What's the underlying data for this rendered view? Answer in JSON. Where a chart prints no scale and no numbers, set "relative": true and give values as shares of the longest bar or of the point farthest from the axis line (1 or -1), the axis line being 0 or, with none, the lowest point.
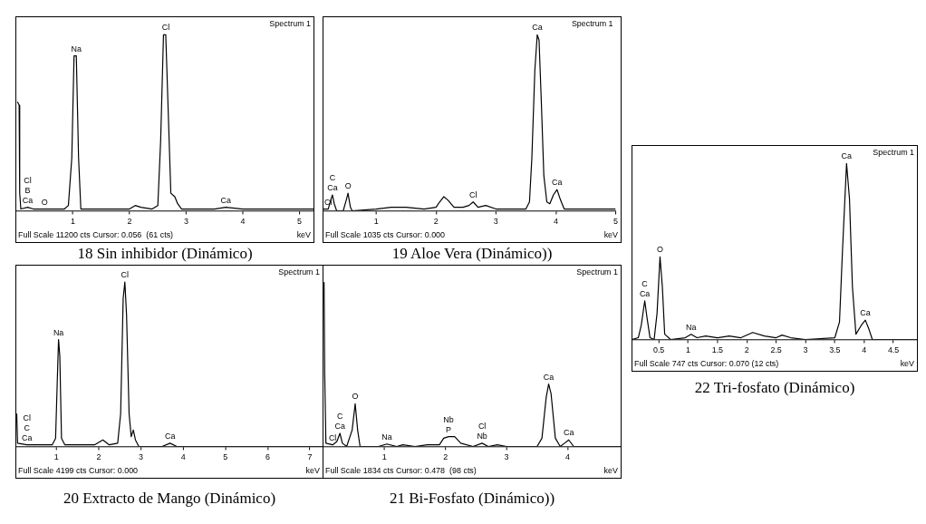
{
  "chart_data": [
    {
      "type": "line",
      "title": "18 Sin inhibidor (Dinámico)",
      "xlabel": "keV",
      "relative": true,
      "marker": "none",
      "xlim": [
        0,
        5.25
      ],
      "xticks": [
        1,
        2,
        3,
        4,
        5
      ],
      "annotations": [
        "Spectrum 1",
        "Full Scale 11200 cts Cursor: 0.056  (61 cts)",
        {
          "text": "Ca",
          "x": 0.2,
          "y": 0.02
        },
        {
          "text": "B",
          "x": 0.2,
          "y": 0.02
        },
        {
          "text": "Cl",
          "x": 0.2,
          "y": 0.02
        },
        {
          "text": "O",
          "x": 0.5,
          "y": 0.01
        },
        {
          "text": "Na",
          "x": 1.06,
          "y": 0.88
        },
        {
          "text": "Cl",
          "x": 2.64,
          "y": 1.0
        },
        {
          "text": "Ca",
          "x": 3.7,
          "y": 0.02
        }
      ],
      "series": [
        {
          "color": "#000000",
          "x": [
            0.02,
            0.05,
            0.06,
            0.08,
            0.2,
            0.3,
            0.5,
            0.85,
            0.92,
            0.98,
            1.02,
            1.06,
            1.1,
            1.14,
            1.5,
            2.0,
            2.1,
            2.2,
            2.4,
            2.5,
            2.55,
            2.6,
            2.64,
            2.69,
            2.73,
            2.8,
            2.85,
            2.92,
            3.5,
            3.7,
            4.0,
            5.25
          ],
          "values": [
            0.62,
            0.6,
            0.1,
            0.01,
            0.02,
            0.01,
            0.01,
            0.01,
            0.03,
            0.3,
            0.88,
            0.88,
            0.3,
            0.01,
            0.01,
            0.01,
            0.03,
            0.02,
            0.01,
            0.03,
            0.4,
            1.0,
            1.0,
            0.5,
            0.1,
            0.08,
            0.04,
            0.01,
            0.01,
            0.02,
            0.01,
            0.01
          ]
        }
      ]
    },
    {
      "type": "line",
      "title": "19  Aloe Vera (Dinámico))",
      "xlabel": "keV",
      "relative": true,
      "marker": "none",
      "xlim": [
        0.12,
        5
      ],
      "xticks": [
        1,
        2,
        3,
        4,
        5
      ],
      "annotations": [
        "Spectrum 1",
        "Full Scale 1035 cts Cursor: 0.000",
        {
          "text": "Cl",
          "x": 0.2,
          "y": 0.01
        },
        {
          "text": "Ca",
          "x": 0.27,
          "y": 0.09
        },
        {
          "text": "C",
          "x": 0.27,
          "y": 0.09
        },
        {
          "text": "O",
          "x": 0.53,
          "y": 0.1
        },
        {
          "text": "Cl",
          "x": 2.62,
          "y": 0.05
        },
        {
          "text": "Ca",
          "x": 3.69,
          "y": 1.0
        },
        {
          "text": "Ca",
          "x": 4.02,
          "y": 0.12
        }
      ],
      "series": [
        {
          "color": "#000000",
          "x": [
            0.12,
            0.2,
            0.24,
            0.27,
            0.3,
            0.34,
            0.45,
            0.5,
            0.53,
            0.57,
            0.6,
            1.0,
            1.25,
            1.5,
            1.8,
            2.0,
            2.06,
            2.13,
            2.2,
            2.3,
            2.45,
            2.55,
            2.62,
            2.7,
            2.83,
            3.0,
            3.5,
            3.56,
            3.6,
            3.65,
            3.69,
            3.72,
            3.76,
            3.8,
            3.85,
            3.9,
            3.96,
            4.02,
            4.08,
            4.14,
            4.5,
            5.0
          ],
          "values": [
            0.01,
            0.01,
            0.06,
            0.09,
            0.04,
            0.0,
            0.0,
            0.06,
            0.1,
            0.02,
            0.0,
            0.01,
            0.02,
            0.02,
            0.01,
            0.02,
            0.05,
            0.08,
            0.06,
            0.02,
            0.02,
            0.03,
            0.05,
            0.02,
            0.03,
            0.01,
            0.01,
            0.05,
            0.3,
            0.8,
            1.0,
            0.97,
            0.6,
            0.2,
            0.05,
            0.04,
            0.09,
            0.12,
            0.06,
            0.01,
            0.01,
            0.01
          ]
        }
      ]
    },
    {
      "type": "line",
      "title": "20 Extracto de Mango (Dinámico)",
      "xlabel": "keV",
      "relative": true,
      "marker": "none",
      "xlim": [
        0.05,
        7.3
      ],
      "xticks": [
        1,
        2,
        3,
        4,
        5,
        6,
        7
      ],
      "annotations": [
        "Spectrum 1",
        "Full Scale 4199 cts Cursor: 0.000",
        {
          "text": "Ca",
          "x": 0.3,
          "y": 0.01
        },
        {
          "text": "C",
          "x": 0.3,
          "y": 0.01
        },
        {
          "text": "Cl",
          "x": 0.3,
          "y": 0.01
        },
        {
          "text": "Na",
          "x": 1.05,
          "y": 0.65
        },
        {
          "text": "Cl",
          "x": 2.62,
          "y": 1.0
        },
        {
          "text": "Ca",
          "x": 3.69,
          "y": 0.02
        }
      ],
      "series": [
        {
          "color": "#000000",
          "x": [
            0.06,
            0.08,
            0.3,
            0.9,
            0.98,
            1.02,
            1.05,
            1.08,
            1.12,
            1.2,
            1.9,
            2.1,
            2.25,
            2.45,
            2.52,
            2.58,
            2.62,
            2.66,
            2.72,
            2.77,
            2.82,
            2.87,
            2.95,
            3.5,
            3.69,
            3.85,
            7.3
          ],
          "values": [
            0.2,
            0.02,
            0.01,
            0.01,
            0.05,
            0.4,
            0.65,
            0.55,
            0.05,
            0.01,
            0.01,
            0.04,
            0.01,
            0.02,
            0.2,
            0.9,
            1.0,
            0.8,
            0.2,
            0.06,
            0.1,
            0.04,
            0.0,
            0.0,
            0.02,
            0.0,
            0.0
          ]
        }
      ]
    },
    {
      "type": "line",
      "title": "21 Bi-Fosfato (Dinámico))",
      "xlabel": "keV",
      "relative": true,
      "marker": "none",
      "xlim": [
        0,
        4.87
      ],
      "xticks": [
        1,
        2,
        3,
        4
      ],
      "annotations": [
        "Spectrum 1",
        "Full Scale 1834 cts Cursor: 0.478  (98 cts)",
        {
          "text": "Cl",
          "x": 0.15,
          "y": 0.01
        },
        {
          "text": "Ca",
          "x": 0.27,
          "y": 0.08
        },
        {
          "text": "C",
          "x": 0.27,
          "y": 0.08
        },
        {
          "text": "O",
          "x": 0.52,
          "y": 0.26
        },
        {
          "text": "Na",
          "x": 1.04,
          "y": 0.015
        },
        {
          "text": "P",
          "x": 2.05,
          "y": 0.06
        },
        {
          "text": "Nb",
          "x": 2.05,
          "y": 0.06
        },
        {
          "text": "Nb",
          "x": 2.6,
          "y": 0.02
        },
        {
          "text": "Cl",
          "x": 2.6,
          "y": 0.02
        },
        {
          "text": "Ca",
          "x": 3.69,
          "y": 0.38
        },
        {
          "text": "Ca",
          "x": 4.02,
          "y": 0.04
        }
      ],
      "series": [
        {
          "color": "#000000",
          "x": [
            0.01,
            0.02,
            0.04,
            0.15,
            0.22,
            0.27,
            0.31,
            0.38,
            0.47,
            0.52,
            0.56,
            0.6,
            0.9,
            1.04,
            1.2,
            1.3,
            1.5,
            1.7,
            1.9,
            1.97,
            2.05,
            2.15,
            2.25,
            2.45,
            2.6,
            2.7,
            2.85,
            3.0,
            3.5,
            3.58,
            3.65,
            3.69,
            3.73,
            3.8,
            3.88,
            3.95,
            4.02,
            4.1,
            4.87
          ],
          "values": [
            1.0,
            0.45,
            0.02,
            0.01,
            0.03,
            0.08,
            0.02,
            0.0,
            0.1,
            0.26,
            0.1,
            0.0,
            0.0,
            0.015,
            0.0,
            0.01,
            0.0,
            0.01,
            0.01,
            0.05,
            0.06,
            0.06,
            0.02,
            0.0,
            0.02,
            0.0,
            0.01,
            0.0,
            0.0,
            0.05,
            0.3,
            0.38,
            0.32,
            0.05,
            0.0,
            0.02,
            0.04,
            0.0,
            0.0
          ]
        }
      ]
    },
    {
      "type": "line",
      "title": "22 Tri-fosfato (Dinámico)",
      "xlabel": "keV",
      "relative": true,
      "marker": "none",
      "xlim": [
        0.05,
        4.9
      ],
      "xticks": [
        0.5,
        1,
        1.5,
        2,
        2.5,
        3,
        3.5,
        4,
        4.5
      ],
      "annotations": [
        "Spectrum 1",
        "Full Scale 747 cts Cursor: 0.070 (12 cts)",
        {
          "text": "Ca",
          "x": 0.26,
          "y": 0.22
        },
        {
          "text": "C",
          "x": 0.26,
          "y": 0.22
        },
        {
          "text": "O",
          "x": 0.52,
          "y": 0.47
        },
        {
          "text": "Na",
          "x": 1.05,
          "y": 0.03
        },
        {
          "text": "Ca",
          "x": 3.7,
          "y": 1.0
        },
        {
          "text": "Ca",
          "x": 4.02,
          "y": 0.11
        }
      ],
      "series": [
        {
          "color": "#000000",
          "x": [
            0.05,
            0.15,
            0.2,
            0.26,
            0.3,
            0.35,
            0.42,
            0.47,
            0.52,
            0.56,
            0.6,
            0.7,
            0.95,
            1.05,
            1.15,
            1.3,
            1.5,
            1.7,
            1.9,
            2.1,
            2.3,
            2.5,
            2.6,
            2.75,
            3.0,
            3.5,
            3.58,
            3.63,
            3.7,
            3.75,
            3.8,
            3.86,
            3.95,
            4.02,
            4.08,
            4.14,
            4.9
          ],
          "values": [
            0.0,
            0.01,
            0.08,
            0.22,
            0.12,
            0.01,
            0.0,
            0.15,
            0.47,
            0.3,
            0.03,
            0.0,
            0.01,
            0.03,
            0.01,
            0.02,
            0.01,
            0.02,
            0.01,
            0.04,
            0.02,
            0.01,
            0.025,
            0.01,
            0.0,
            0.01,
            0.1,
            0.5,
            1.0,
            0.8,
            0.3,
            0.03,
            0.08,
            0.11,
            0.06,
            0.0,
            0.0
          ]
        }
      ]
    }
  ]
}
